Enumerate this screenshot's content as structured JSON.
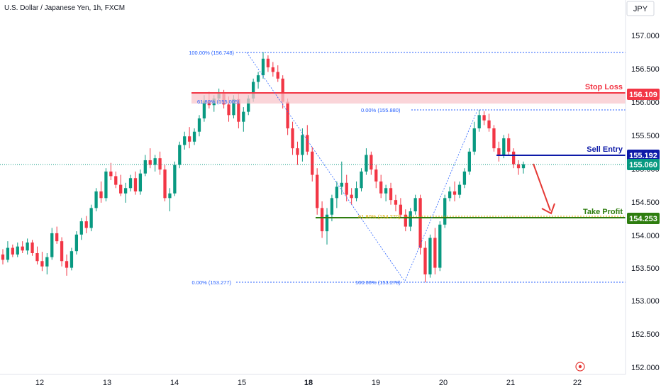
{
  "header": {
    "symbol_title": "U.S. Dollar / Japanese Yen, 1h, FXCM"
  },
  "axis": {
    "currency": "JPY",
    "price_ticks": [
      "157.000",
      "156.500",
      "156.000",
      "155.500",
      "155.000",
      "154.500",
      "154.000",
      "153.500",
      "153.000",
      "152.500",
      "152.000"
    ],
    "price_tick_values": [
      157.0,
      156.5,
      156.0,
      155.5,
      155.0,
      154.5,
      154.0,
      153.5,
      153.0,
      152.5,
      152.0
    ],
    "date_ticks": [
      "12",
      "13",
      "14",
      "15",
      "18",
      "19",
      "20",
      "21",
      "22"
    ],
    "bold_date": "18"
  },
  "levels": {
    "stop_loss": {
      "name": "Stop Loss",
      "price": 156.109,
      "price_label": "156.109",
      "color": "#f23645"
    },
    "sell_entry": {
      "name": "Sell Entry",
      "price": 155.192,
      "price_label": "155.192",
      "color": "#0d1aa8"
    },
    "current": {
      "price": 155.06,
      "price_label": "155.060",
      "color": "#089981"
    },
    "take_profit": {
      "name": "Take Profit",
      "price": 154.253,
      "price_label": "154.253",
      "color": "#2e7d0f"
    }
  },
  "fib_labels": {
    "left_100": "100.00% (156.748)",
    "left_0": "0.00% (153.277)",
    "left_618": "61.80% (155.005)",
    "right_0": "0.00% (155.880)",
    "right_100": "100.00% (153.278)",
    "right_618": "61.80% (154.270)"
  },
  "colors": {
    "bull": "#089981",
    "bear": "#f23645",
    "fib": "#2962ff",
    "accent_arrow": "#e53935"
  },
  "icons": {
    "target": "target-icon"
  },
  "chart_data": {
    "type": "candlestick",
    "title": "U.S. Dollar / Japanese Yen, 1h, FXCM",
    "ylim": [
      151.95,
      157.3
    ],
    "candles": [
      [
        153.7,
        153.78,
        153.55,
        153.62
      ],
      [
        153.62,
        153.9,
        153.58,
        153.8
      ],
      [
        153.8,
        153.85,
        153.66,
        153.7
      ],
      [
        153.7,
        153.88,
        153.66,
        153.82
      ],
      [
        153.82,
        153.9,
        153.72,
        153.76
      ],
      [
        153.76,
        153.94,
        153.7,
        153.88
      ],
      [
        153.88,
        153.92,
        153.68,
        153.72
      ],
      [
        153.72,
        153.82,
        153.55,
        153.6
      ],
      [
        153.6,
        153.74,
        153.45,
        153.52
      ],
      [
        153.52,
        153.72,
        153.4,
        153.66
      ],
      [
        153.66,
        154.1,
        153.62,
        154.02
      ],
      [
        154.02,
        154.12,
        153.86,
        153.9
      ],
      [
        153.9,
        153.96,
        153.52,
        153.6
      ],
      [
        153.6,
        153.7,
        153.38,
        153.5
      ],
      [
        153.5,
        153.8,
        153.46,
        153.75
      ],
      [
        153.75,
        154.05,
        153.7,
        154.0
      ],
      [
        154.0,
        154.25,
        153.92,
        154.2
      ],
      [
        154.2,
        154.28,
        154.02,
        154.1
      ],
      [
        154.1,
        154.45,
        154.05,
        154.4
      ],
      [
        154.4,
        154.7,
        154.35,
        154.65
      ],
      [
        154.65,
        154.8,
        154.48,
        154.55
      ],
      [
        154.55,
        155.0,
        154.5,
        154.95
      ],
      [
        154.95,
        155.08,
        154.82,
        154.88
      ],
      [
        154.88,
        154.95,
        154.7,
        154.75
      ],
      [
        154.75,
        154.9,
        154.58,
        154.62
      ],
      [
        154.62,
        154.78,
        154.48,
        154.7
      ],
      [
        154.7,
        154.9,
        154.65,
        154.85
      ],
      [
        154.85,
        154.95,
        154.6,
        154.65
      ],
      [
        154.65,
        154.98,
        154.6,
        154.92
      ],
      [
        154.92,
        155.2,
        154.88,
        155.12
      ],
      [
        155.12,
        155.3,
        155.0,
        155.05
      ],
      [
        155.05,
        155.2,
        154.95,
        155.15
      ],
      [
        155.15,
        155.25,
        154.9,
        154.98
      ],
      [
        154.98,
        155.05,
        154.5,
        154.55
      ],
      [
        154.55,
        154.7,
        154.35,
        154.62
      ],
      [
        154.62,
        155.1,
        154.58,
        155.05
      ],
      [
        155.05,
        155.4,
        155.0,
        155.35
      ],
      [
        155.35,
        155.55,
        155.28,
        155.48
      ],
      [
        155.48,
        155.62,
        155.3,
        155.4
      ],
      [
        155.4,
        155.6,
        155.35,
        155.55
      ],
      [
        155.55,
        155.8,
        155.48,
        155.75
      ],
      [
        155.75,
        156.1,
        155.7,
        156.02
      ],
      [
        156.02,
        156.15,
        155.9,
        155.95
      ],
      [
        155.95,
        156.1,
        155.85,
        156.05
      ],
      [
        156.05,
        156.2,
        155.98,
        156.12
      ],
      [
        156.12,
        156.18,
        155.9,
        155.96
      ],
      [
        155.96,
        156.08,
        155.7,
        155.8
      ],
      [
        155.8,
        156.1,
        155.75,
        156.04
      ],
      [
        156.04,
        156.12,
        155.6,
        155.7
      ],
      [
        155.7,
        155.92,
        155.55,
        155.85
      ],
      [
        155.85,
        156.1,
        155.8,
        156.05
      ],
      [
        156.05,
        156.35,
        156.0,
        156.3
      ],
      [
        156.3,
        156.45,
        156.2,
        156.4
      ],
      [
        156.4,
        156.75,
        156.35,
        156.65
      ],
      [
        156.65,
        156.7,
        156.45,
        156.52
      ],
      [
        156.52,
        156.6,
        156.38,
        156.45
      ],
      [
        156.45,
        156.55,
        156.3,
        156.35
      ],
      [
        156.35,
        156.4,
        155.9,
        156.0
      ],
      [
        156.0,
        156.05,
        155.5,
        155.6
      ],
      [
        155.6,
        155.7,
        155.2,
        155.3
      ],
      [
        155.3,
        155.4,
        155.05,
        155.2
      ],
      [
        155.2,
        155.6,
        155.1,
        155.5
      ],
      [
        155.5,
        155.65,
        155.2,
        155.25
      ],
      [
        155.25,
        155.32,
        154.8,
        154.9
      ],
      [
        154.9,
        155.0,
        154.3,
        154.4
      ],
      [
        154.4,
        154.5,
        153.95,
        154.05
      ],
      [
        154.05,
        154.4,
        153.85,
        154.3
      ],
      [
        154.3,
        154.6,
        154.2,
        154.55
      ],
      [
        154.55,
        154.8,
        154.4,
        154.72
      ],
      [
        154.72,
        155.1,
        154.6,
        154.78
      ],
      [
        154.78,
        154.9,
        154.5,
        154.6
      ],
      [
        154.6,
        154.7,
        154.45,
        154.55
      ],
      [
        154.55,
        154.8,
        154.5,
        154.7
      ],
      [
        154.7,
        155.0,
        154.65,
        154.95
      ],
      [
        154.95,
        155.3,
        154.9,
        155.2
      ],
      [
        155.2,
        155.25,
        154.9,
        154.98
      ],
      [
        154.98,
        155.05,
        154.7,
        154.8
      ],
      [
        154.8,
        154.9,
        154.55,
        154.62
      ],
      [
        154.62,
        154.75,
        154.5,
        154.7
      ],
      [
        154.7,
        154.78,
        154.45,
        154.52
      ],
      [
        154.52,
        154.6,
        154.35,
        154.45
      ],
      [
        154.45,
        154.55,
        154.25,
        154.3
      ],
      [
        154.3,
        154.38,
        154.05,
        154.12
      ],
      [
        154.12,
        154.4,
        154.05,
        154.35
      ],
      [
        154.35,
        154.6,
        154.3,
        154.55
      ],
      [
        154.55,
        154.6,
        153.7,
        153.8
      ],
      [
        153.8,
        153.9,
        153.28,
        153.4
      ],
      [
        153.4,
        154.0,
        153.35,
        153.95
      ],
      [
        153.95,
        154.1,
        153.4,
        153.5
      ],
      [
        153.5,
        154.2,
        153.45,
        154.15
      ],
      [
        154.15,
        154.6,
        154.1,
        154.55
      ],
      [
        154.55,
        154.72,
        154.5,
        154.65
      ],
      [
        154.65,
        154.8,
        154.5,
        154.6
      ],
      [
        154.6,
        154.8,
        154.55,
        154.75
      ],
      [
        154.75,
        155.0,
        154.7,
        154.95
      ],
      [
        154.95,
        155.3,
        154.9,
        155.25
      ],
      [
        155.25,
        155.7,
        155.2,
        155.6
      ],
      [
        155.6,
        155.88,
        155.55,
        155.8
      ],
      [
        155.8,
        155.86,
        155.65,
        155.72
      ],
      [
        155.72,
        155.82,
        155.55,
        155.6
      ],
      [
        155.6,
        155.65,
        155.25,
        155.3
      ],
      [
        155.3,
        155.4,
        155.1,
        155.2
      ],
      [
        155.2,
        155.5,
        155.15,
        155.45
      ],
      [
        155.45,
        155.52,
        155.2,
        155.25
      ],
      [
        155.25,
        155.3,
        155.0,
        155.06
      ],
      [
        155.06,
        155.12,
        154.9,
        155.0
      ],
      [
        155.0,
        155.1,
        154.92,
        155.06
      ]
    ]
  }
}
